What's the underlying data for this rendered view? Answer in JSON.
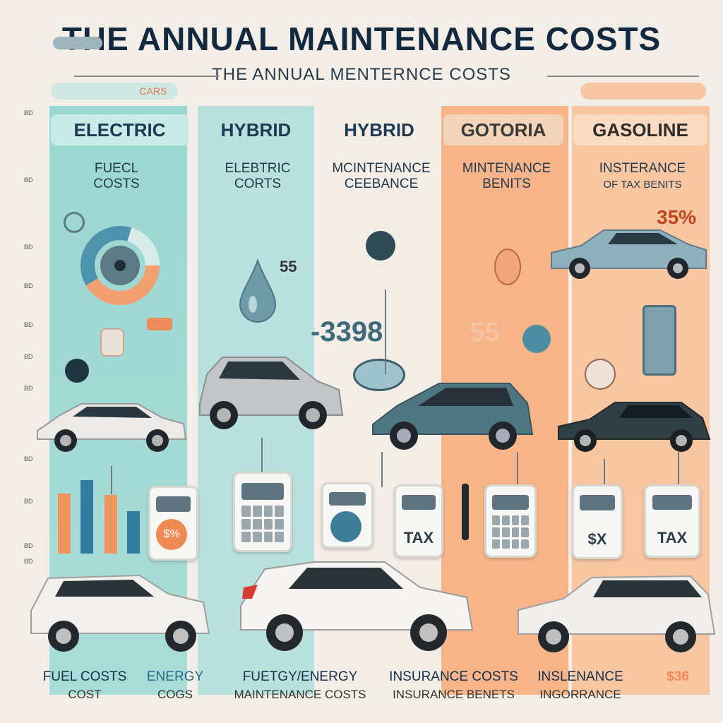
{
  "title": "THE ANNUAL MAINTENANCE COSTS",
  "subtitle": "THE ANNUAL MENTERNCE COSTS",
  "top_left_pill": "CARS",
  "columns": [
    {
      "header": "ELECTRIC",
      "line1": "FUECL",
      "line2": "COSTS"
    },
    {
      "header": "HYBRID",
      "line1": "ELEBTRIC",
      "line2": "CORTS"
    },
    {
      "header": "HYBRID",
      "line1": "MCINTENANCE",
      "line2": "CEEBANCE"
    },
    {
      "header": "GOTORIA",
      "line1": "MINTENANCE",
      "line2": "BENITS"
    },
    {
      "header": "GASOLINE",
      "line1": "INSTERANCE",
      "line2": "OF TAX BENITS"
    }
  ],
  "values": {
    "center": "-3398",
    "orange": "55",
    "gasoline": "35%",
    "small": "55",
    "percent_icon": "$%"
  },
  "calc_labels": {
    "tax1": "TAX",
    "tax2": "TAX",
    "sx": "$X"
  },
  "bottom": [
    {
      "title": "FUEL COSTS",
      "sub": "COST"
    },
    {
      "title": "ENERGY",
      "sub": "COGS"
    },
    {
      "title": "FUETGY/ENERGY",
      "sub": "MAINTENANCE COSTS"
    },
    {
      "title": "INSURANCE COSTS",
      "sub": "INSURANCE BENETS"
    },
    {
      "title": "INSLENANCE",
      "sub": "INGORRANCE"
    },
    {
      "title": "$36",
      "sub": ""
    }
  ],
  "colors": {
    "teal": "#8fd1cd",
    "orange": "#f6ad7e",
    "navy": "#13293f"
  }
}
